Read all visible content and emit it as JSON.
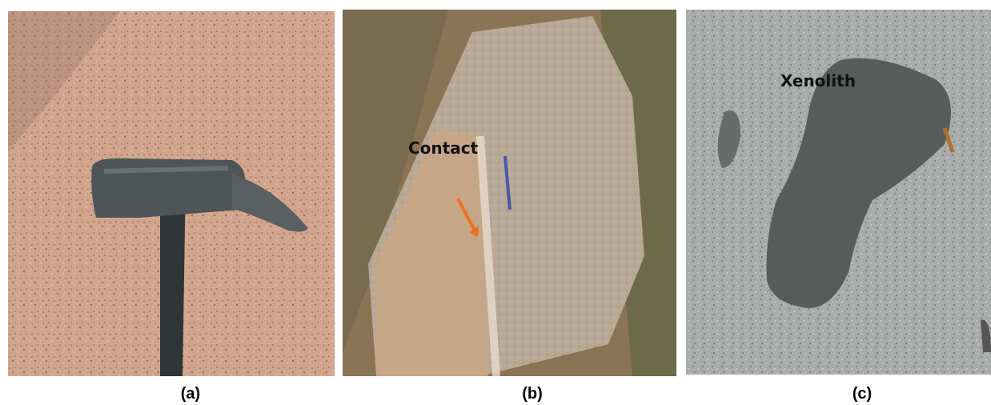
{
  "panels": [
    {
      "caption": "(a)"
    },
    {
      "caption": "(b)",
      "annotation": "Contact"
    },
    {
      "caption": "(c)",
      "annotation": "Xenolith"
    }
  ]
}
